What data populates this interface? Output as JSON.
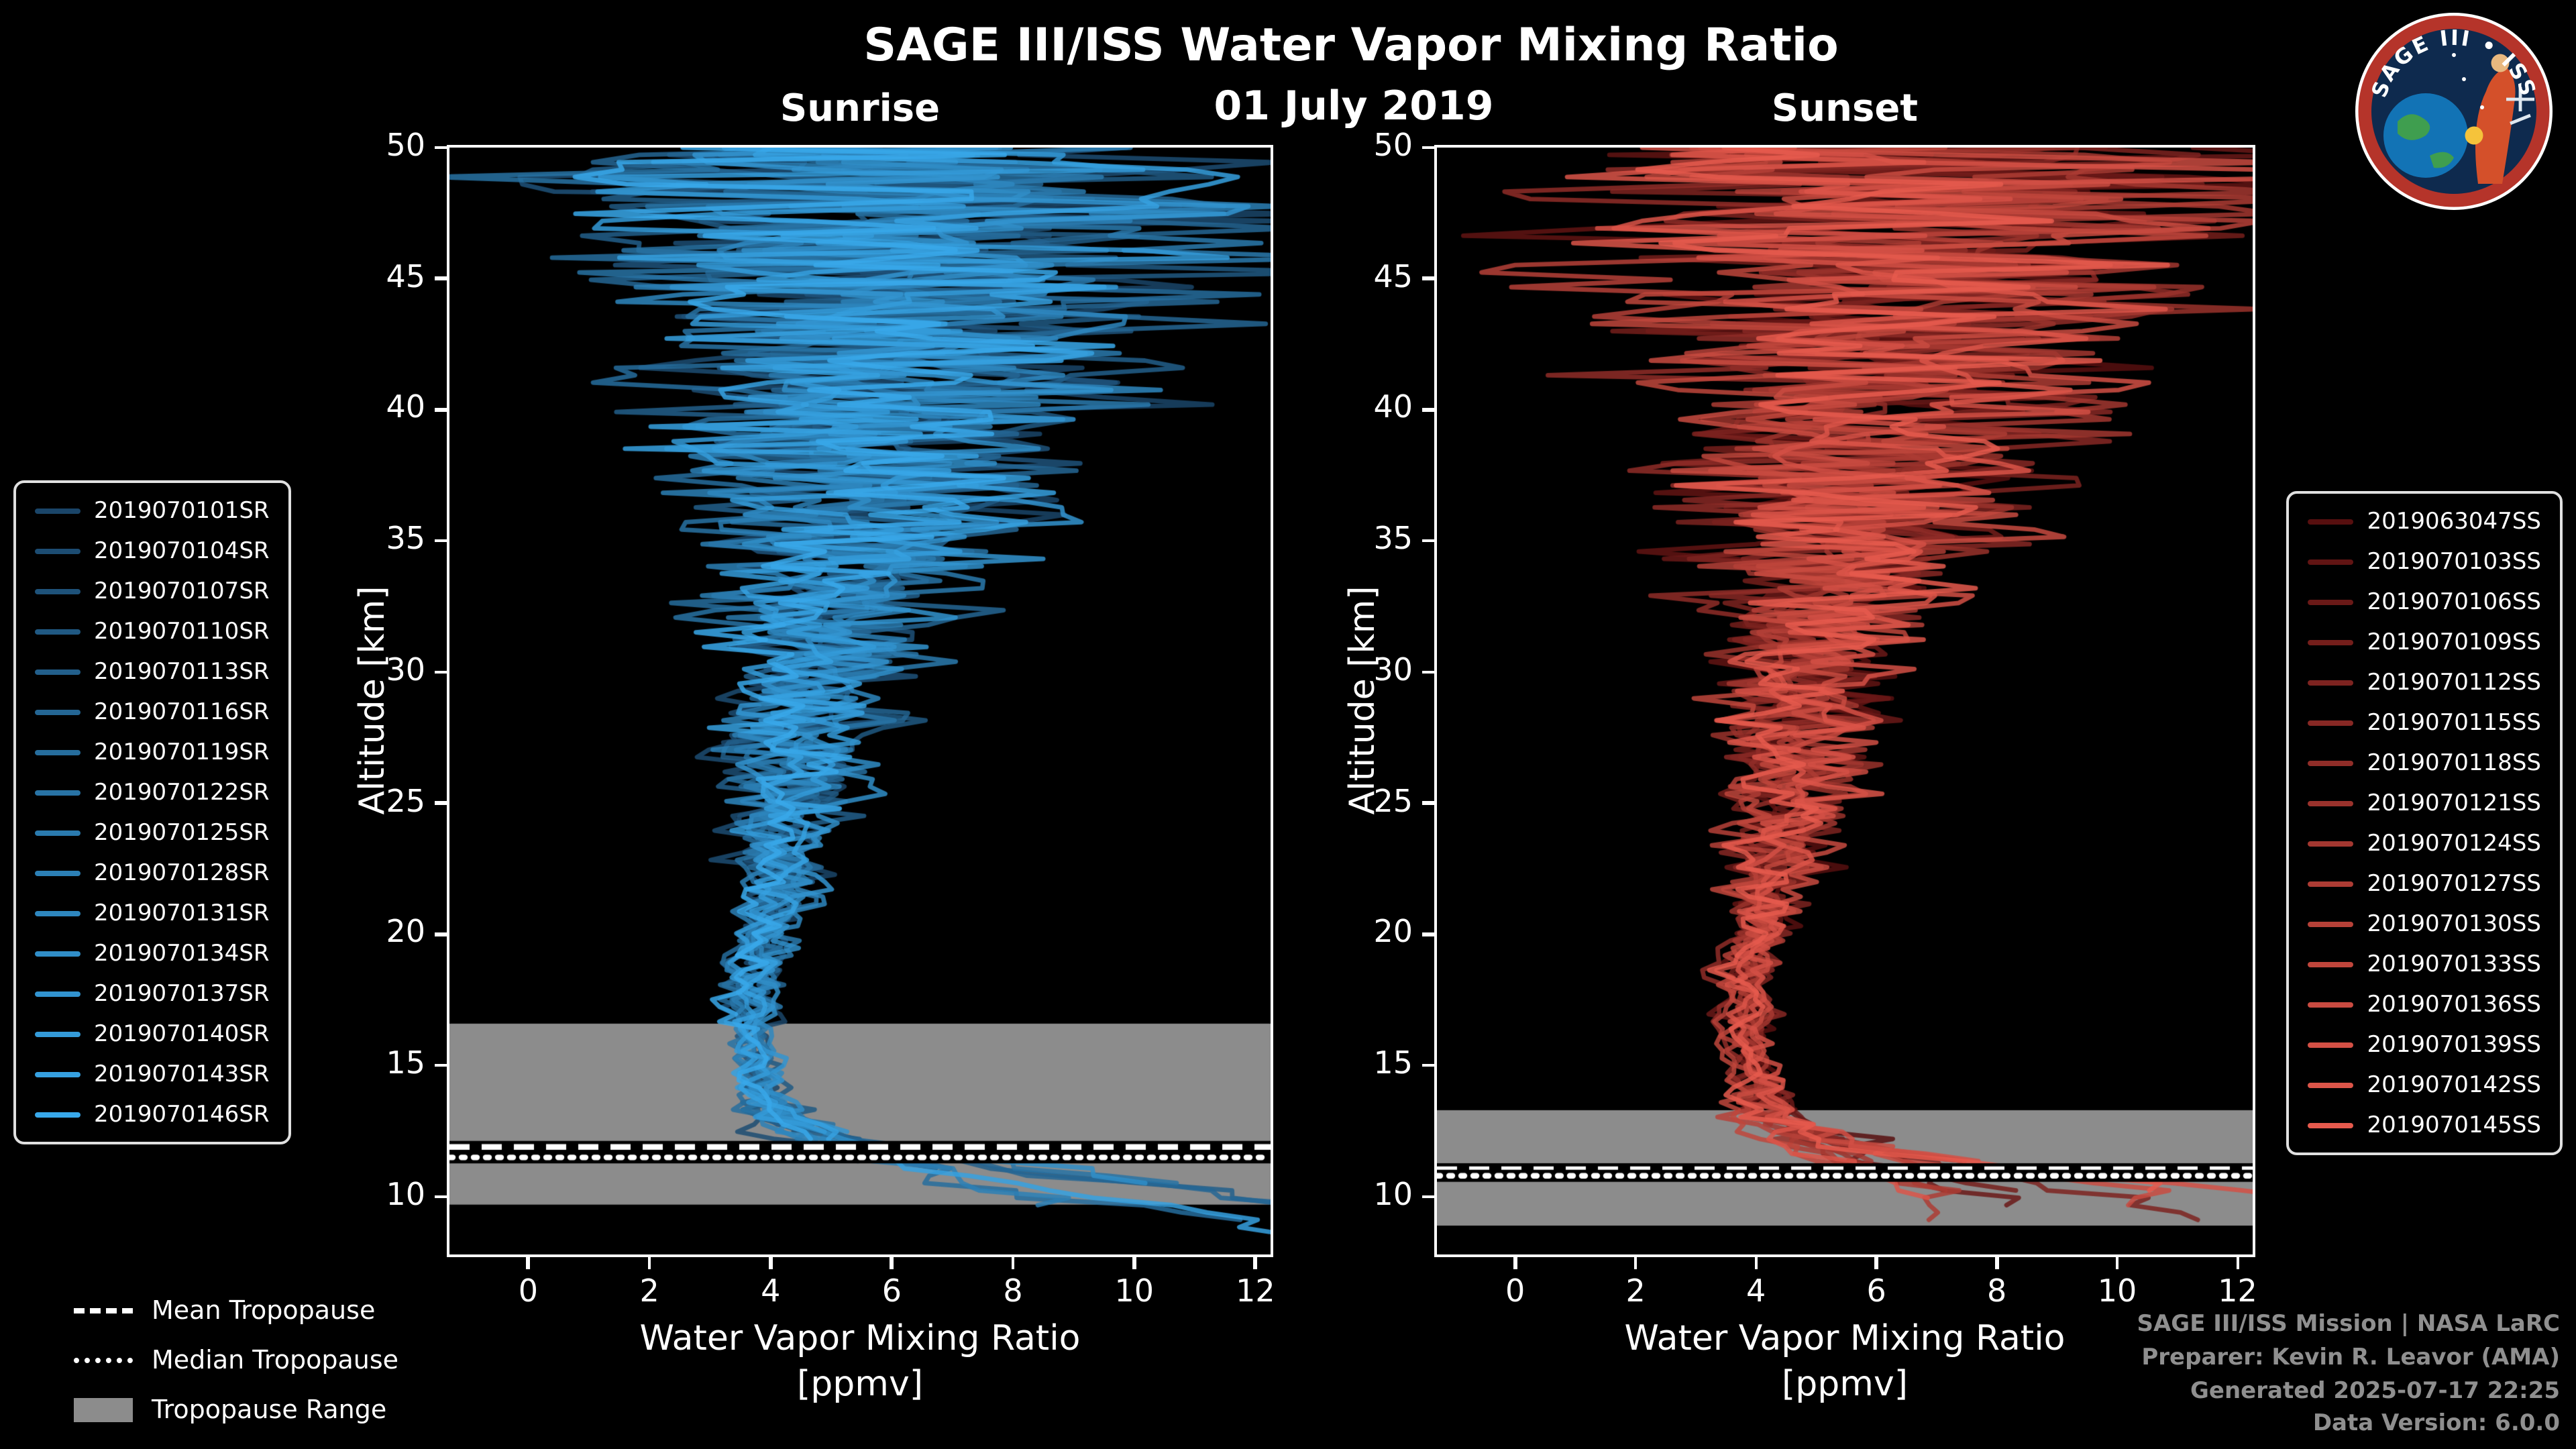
{
  "header": {
    "title": "SAGE III/ISS Water Vapor Mixing Ratio",
    "date": "01 July 2019",
    "left_panel_title": "Sunrise",
    "right_panel_title": "Sunset"
  },
  "axes": {
    "y_label": "Altitude [km]",
    "x_label_line1": "Water Vapor Mixing Ratio",
    "x_label_line2": "[ppmv]"
  },
  "legend_left": {
    "items": [
      "2019070101SR",
      "2019070104SR",
      "2019070107SR",
      "2019070110SR",
      "2019070113SR",
      "2019070116SR",
      "2019070119SR",
      "2019070122SR",
      "2019070125SR",
      "2019070128SR",
      "2019070131SR",
      "2019070134SR",
      "2019070137SR",
      "2019070140SR",
      "2019070143SR",
      "2019070146SR"
    ]
  },
  "legend_right": {
    "items": [
      "2019063047SS",
      "2019070103SS",
      "2019070106SS",
      "2019070109SS",
      "2019070112SS",
      "2019070115SS",
      "2019070118SS",
      "2019070121SS",
      "2019070124SS",
      "2019070127SS",
      "2019070130SS",
      "2019070133SS",
      "2019070136SS",
      "2019070139SS",
      "2019070142SS",
      "2019070145SS"
    ]
  },
  "tropopause_legend": {
    "mean": "Mean Tropopause",
    "median": "Median Tropopause",
    "range": "Tropopause Range"
  },
  "credits": {
    "line1": "SAGE III/ISS Mission | NASA LaRC",
    "line2": "Preparer: Kevin R. Leavor (AMA)",
    "line3": "Generated 2025-07-17 22:25",
    "line4": "Data Version: 6.0.0"
  },
  "logo": {
    "arc_text": "SAGE III • ISS"
  },
  "colors": {
    "background": "#000000",
    "text": "#ffffff",
    "credits_text": "#8f8f8f",
    "tropopause_band": "#8c8c8c",
    "logo_ring": "#b5342a"
  },
  "chart_data": [
    {
      "type": "line",
      "panel": "Sunrise",
      "title": "Sunrise",
      "xlabel": "Water Vapor Mixing Ratio [ppmv]",
      "ylabel": "Altitude [km]",
      "xlim": [
        -1.3,
        12.25
      ],
      "ylim": [
        7.8,
        50
      ],
      "x_ticks": [
        0,
        2,
        4,
        6,
        8,
        10,
        12
      ],
      "y_ticks": [
        10,
        15,
        20,
        25,
        30,
        35,
        40,
        45,
        50
      ],
      "grid": false,
      "legend_position": "outside-left",
      "series_names": [
        "2019070101SR",
        "2019070104SR",
        "2019070107SR",
        "2019070110SR",
        "2019070113SR",
        "2019070116SR",
        "2019070119SR",
        "2019070122SR",
        "2019070125SR",
        "2019070128SR",
        "2019070131SR",
        "2019070134SR",
        "2019070137SR",
        "2019070140SR",
        "2019070143SR",
        "2019070146SR"
      ],
      "color_ramp": [
        "#1a4569",
        "#38a8ea"
      ],
      "mean_profile": {
        "altitude_km": [
          8.6,
          10,
          11,
          12,
          13,
          14,
          15,
          16,
          17,
          18,
          20,
          22,
          25,
          28,
          30,
          33,
          35,
          38,
          40,
          43,
          45,
          48,
          50
        ],
        "ppmv": [
          11.8,
          9.9,
          7.1,
          5.2,
          4.1,
          3.9,
          3.8,
          3.7,
          3.65,
          3.7,
          3.9,
          4.1,
          4.35,
          4.6,
          4.75,
          5.0,
          5.2,
          5.45,
          5.6,
          5.85,
          6.0,
          6.3,
          6.5
        ]
      },
      "noise_sigma_ppmv": {
        "altitude_km": [
          8.6,
          10,
          15,
          20,
          25,
          30,
          35,
          40,
          45,
          50
        ],
        "sigma": [
          1.4,
          1.2,
          0.3,
          0.5,
          1.0,
          1.5,
          2.5,
          3.6,
          4.9,
          6.2
        ]
      },
      "tropopause": {
        "range_km": [
          9.7,
          16.6
        ],
        "mean_km": 11.9,
        "median_km": 11.5
      }
    },
    {
      "type": "line",
      "panel": "Sunset",
      "title": "Sunset",
      "xlabel": "Water Vapor Mixing Ratio [ppmv]",
      "ylabel": "Altitude [km]",
      "xlim": [
        -1.3,
        12.25
      ],
      "ylim": [
        7.8,
        50
      ],
      "x_ticks": [
        0,
        2,
        4,
        6,
        8,
        10,
        12
      ],
      "y_ticks": [
        10,
        15,
        20,
        25,
        30,
        35,
        40,
        45,
        50
      ],
      "grid": false,
      "legend_position": "outside-right",
      "series_names": [
        "2019063047SS",
        "2019070103SS",
        "2019070106SS",
        "2019070109SS",
        "2019070112SS",
        "2019070115SS",
        "2019070118SS",
        "2019070121SS",
        "2019070124SS",
        "2019070127SS",
        "2019070130SS",
        "2019070133SS",
        "2019070136SS",
        "2019070139SS",
        "2019070142SS",
        "2019070145SS"
      ],
      "color_ramp": [
        "#570f0f",
        "#e65a4d"
      ],
      "mean_profile": {
        "altitude_km": [
          8.6,
          10,
          11,
          12,
          13,
          14,
          15,
          16,
          17,
          18,
          20,
          22,
          25,
          28,
          30,
          33,
          35,
          38,
          40,
          43,
          45,
          48,
          50
        ],
        "ppmv": [
          11.5,
          9.6,
          7.0,
          5.3,
          4.2,
          4.0,
          3.9,
          3.8,
          3.75,
          3.8,
          4.0,
          4.2,
          4.45,
          4.7,
          4.85,
          5.1,
          5.3,
          5.55,
          5.7,
          5.95,
          6.1,
          6.4,
          6.6
        ]
      },
      "noise_sigma_ppmv": {
        "altitude_km": [
          8.6,
          10,
          15,
          20,
          25,
          30,
          35,
          40,
          45,
          50
        ],
        "sigma": [
          1.3,
          1.1,
          0.3,
          0.5,
          1.0,
          1.5,
          2.5,
          3.6,
          4.9,
          6.2
        ]
      },
      "tropopause": {
        "range_km": [
          8.9,
          13.3
        ],
        "mean_km": 11.05,
        "median_km": 10.8
      }
    }
  ]
}
